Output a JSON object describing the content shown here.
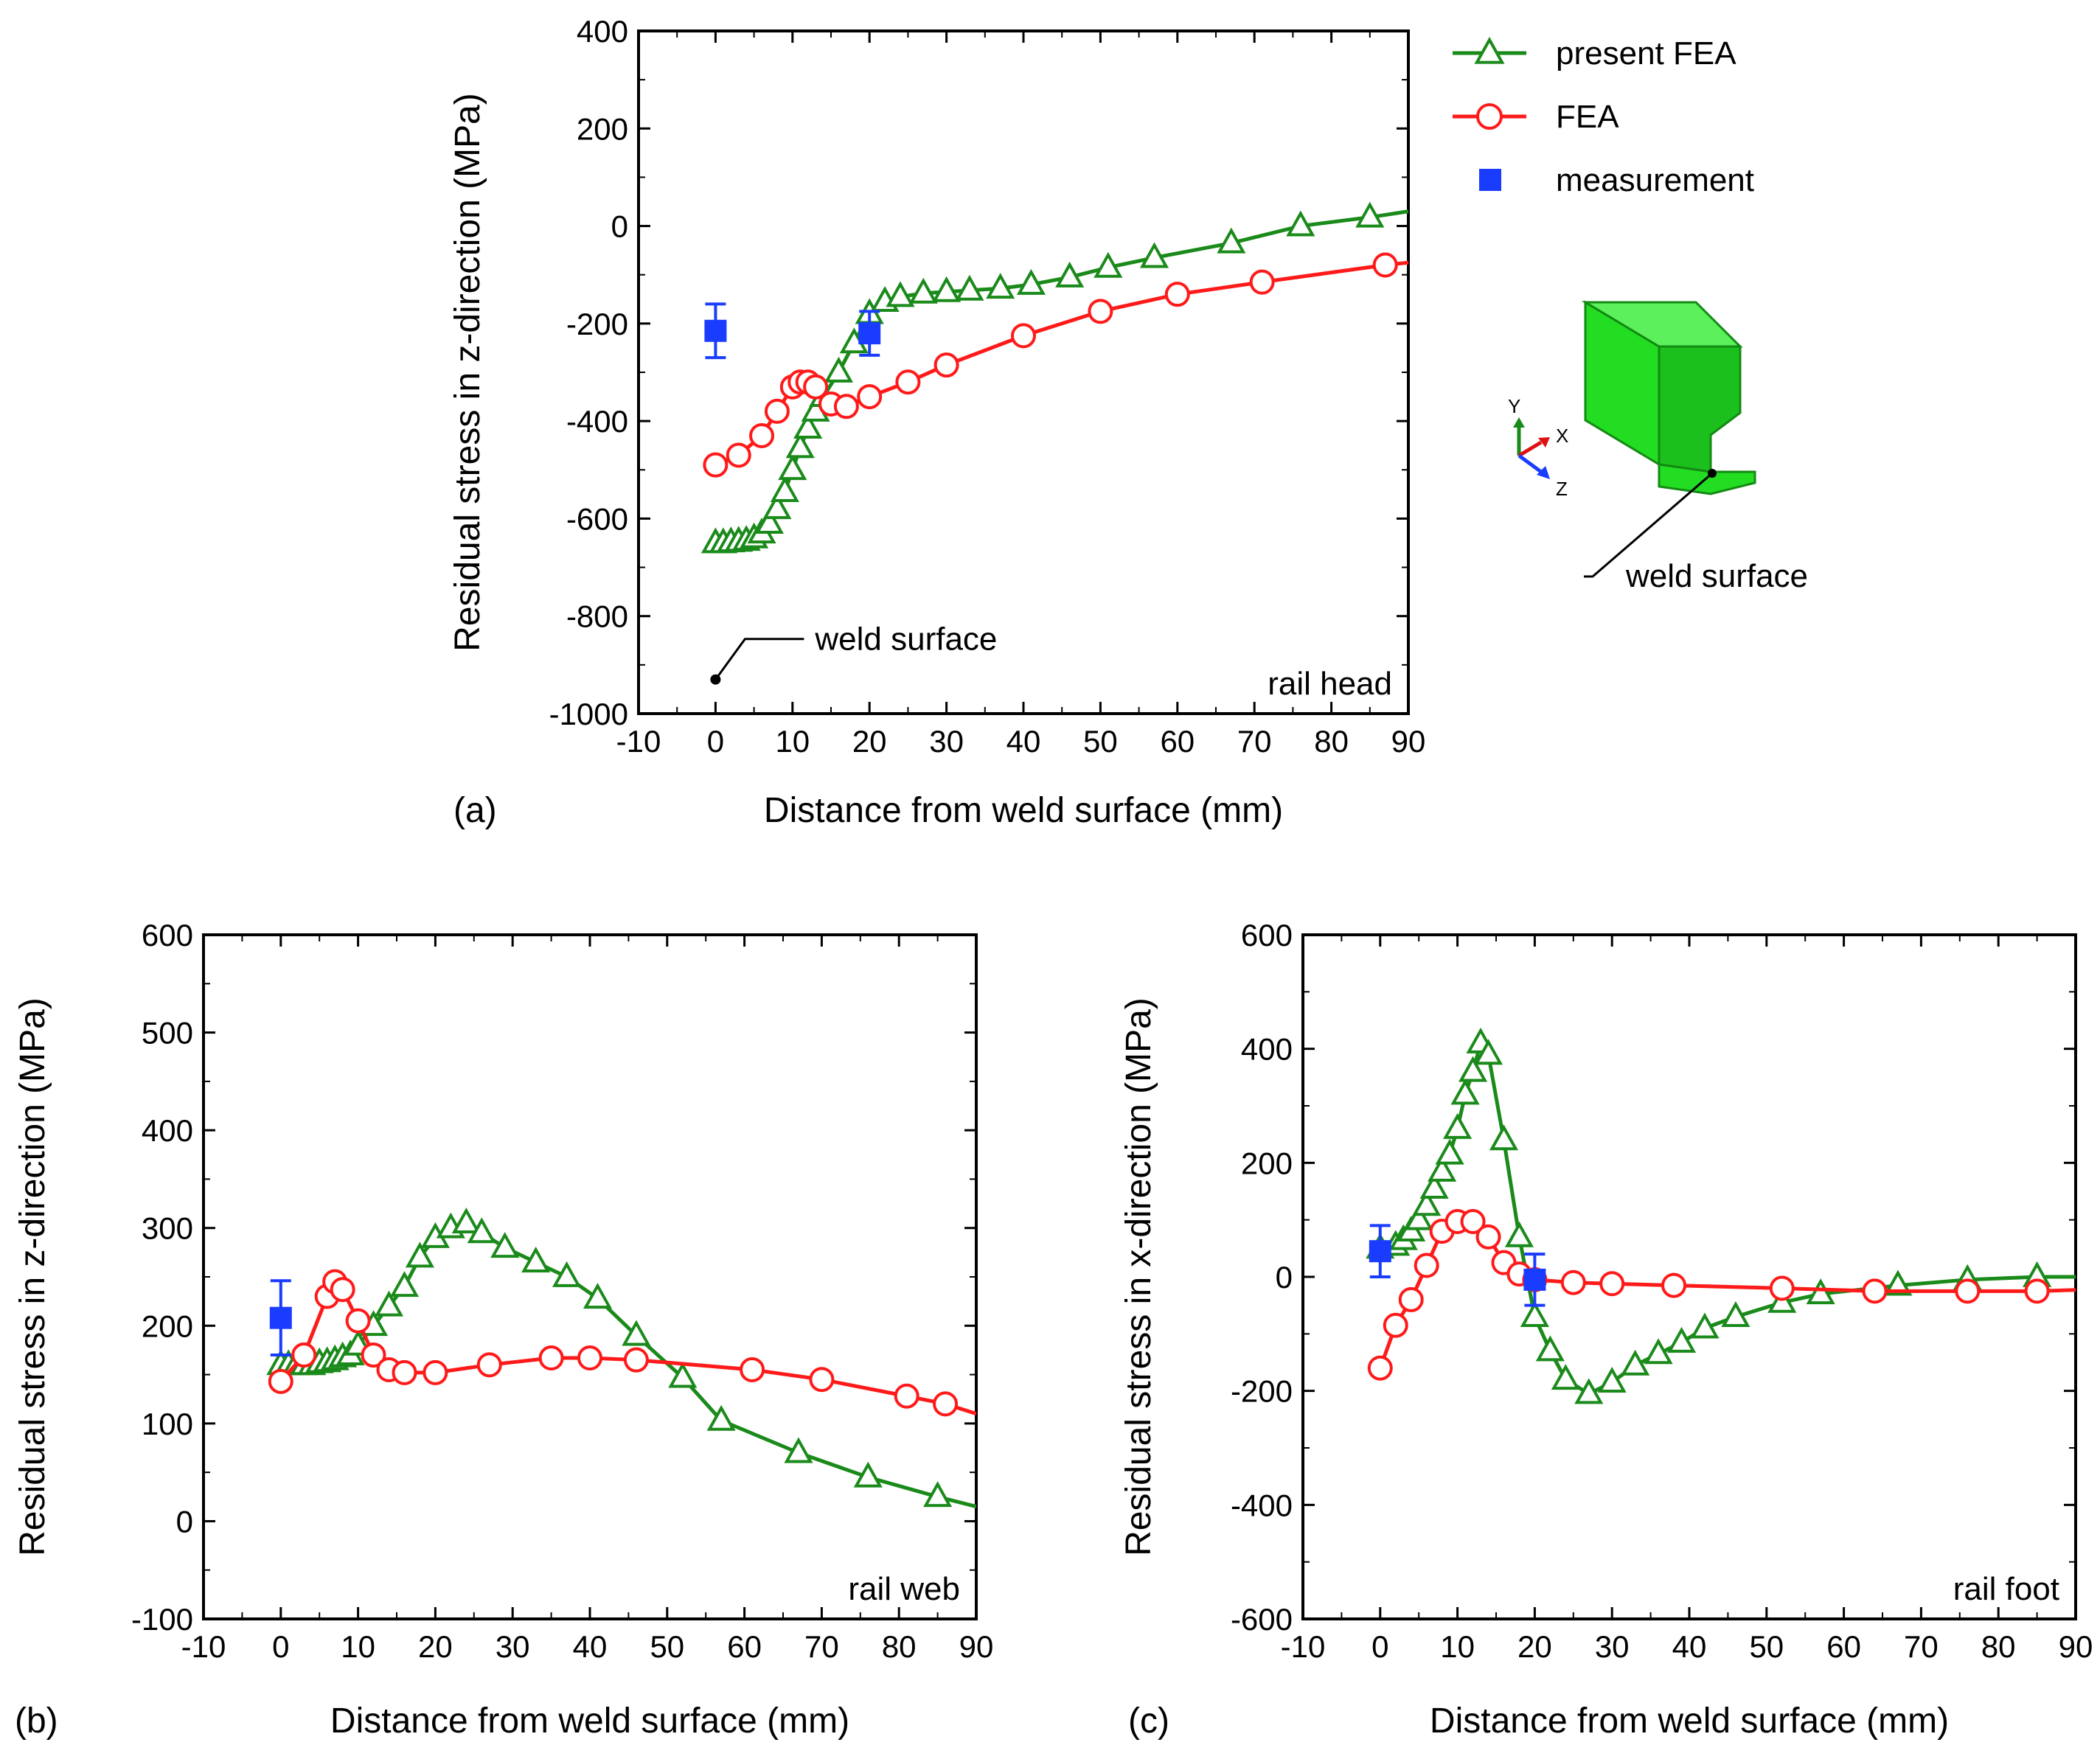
{
  "legend": {
    "entries": [
      {
        "label": "present FEA",
        "color": "#1a8a1a",
        "marker": "triangle-open"
      },
      {
        "label": "FEA",
        "color": "#ff1a1a",
        "marker": "circle-open"
      },
      {
        "label": "measurement",
        "color": "#1a3cff",
        "marker": "square-filled"
      }
    ]
  },
  "inset": {
    "axes": {
      "y": "Y",
      "x": "X",
      "z": "Z"
    },
    "label": "weld surface",
    "solid_color": "#22dd22"
  },
  "chart_data": [
    {
      "type": "line",
      "panel_label": "(a)",
      "xlabel": "Distance from weld surface (mm)",
      "ylabel": "Residual stress in z-direction (MPa)",
      "xlim": [
        -10,
        90
      ],
      "ylim": [
        -1000,
        400
      ],
      "xticks": [
        -10,
        0,
        10,
        20,
        30,
        40,
        50,
        60,
        70,
        80,
        90
      ],
      "yticks": [
        -1000,
        -800,
        -600,
        -400,
        -200,
        0,
        200,
        400
      ],
      "annotation": "rail head",
      "callout": "weld surface",
      "callout_x": 0,
      "callout_y": -930,
      "series": [
        {
          "name": "present FEA",
          "color": "#1a8a1a",
          "marker": "triangle",
          "x": [
            0,
            1,
            2,
            3,
            4,
            5,
            6,
            7,
            8,
            9,
            10,
            11,
            12,
            13,
            14,
            16,
            18,
            20,
            22,
            24,
            27,
            30,
            33,
            37,
            41,
            46,
            51,
            57,
            67,
            76,
            85,
            90
          ],
          "y": [
            -650,
            -650,
            -648,
            -647,
            -645,
            -640,
            -630,
            -610,
            -580,
            -545,
            -500,
            -455,
            -415,
            -380,
            -350,
            -300,
            -240,
            -180,
            -155,
            -145,
            -138,
            -135,
            -132,
            -128,
            -120,
            -105,
            -85,
            -65,
            -35,
            0,
            18,
            30
          ]
        },
        {
          "name": "FEA",
          "color": "#ff1a1a",
          "marker": "circle",
          "x": [
            0,
            3,
            6,
            8,
            10,
            11,
            12,
            13,
            15,
            17,
            20,
            25,
            30,
            40,
            50,
            60,
            71,
            87,
            90
          ],
          "y": [
            -490,
            -470,
            -430,
            -380,
            -330,
            -320,
            -320,
            -330,
            -365,
            -370,
            -350,
            -320,
            -285,
            -225,
            -175,
            -140,
            -115,
            -80,
            -75
          ]
        },
        {
          "name": "measurement",
          "color": "#1a3cff",
          "marker": "square",
          "lines": false,
          "x": [
            0,
            20
          ],
          "y": [
            -215,
            -220
          ],
          "err": [
            55,
            45
          ]
        }
      ]
    },
    {
      "type": "line",
      "panel_label": "(b)",
      "xlabel": "Distance from weld surface (mm)",
      "ylabel": "Residual stress in z-direction (MPa)",
      "xlim": [
        -10,
        90
      ],
      "ylim": [
        -100,
        600
      ],
      "xticks": [
        -10,
        0,
        10,
        20,
        30,
        40,
        50,
        60,
        70,
        80,
        90
      ],
      "yticks": [
        -100,
        0,
        100,
        200,
        300,
        400,
        500,
        600
      ],
      "annotation": "rail web",
      "series": [
        {
          "name": "present FEA",
          "color": "#1a8a1a",
          "marker": "triangle",
          "x": [
            0,
            1,
            2,
            3,
            4,
            5,
            6,
            7,
            8,
            9,
            10,
            12,
            14,
            16,
            18,
            20,
            22,
            24,
            26,
            29,
            33,
            37,
            41,
            46,
            52,
            57,
            67,
            76,
            85,
            90
          ],
          "y": [
            160,
            160,
            160,
            160,
            160,
            162,
            163,
            165,
            168,
            170,
            180,
            200,
            220,
            240,
            270,
            290,
            300,
            305,
            295,
            280,
            265,
            250,
            228,
            190,
            147,
            103,
            70,
            45,
            25,
            15
          ]
        },
        {
          "name": "FEA",
          "color": "#ff1a1a",
          "marker": "circle",
          "x": [
            0,
            3,
            6,
            7,
            8,
            10,
            12,
            14,
            16,
            20,
            27,
            35,
            40,
            46,
            61,
            70,
            81,
            86,
            90
          ],
          "y": [
            143,
            170,
            230,
            245,
            237,
            205,
            170,
            155,
            152,
            152,
            160,
            167,
            167,
            165,
            155,
            145,
            128,
            120,
            110
          ]
        },
        {
          "name": "measurement",
          "color": "#1a3cff",
          "marker": "square",
          "lines": false,
          "x": [
            0
          ],
          "y": [
            208
          ],
          "err": [
            38
          ]
        }
      ]
    },
    {
      "type": "line",
      "panel_label": "(c)",
      "xlabel": "Distance from weld surface (mm)",
      "ylabel": "Residual stress in x-direction (MPa)",
      "xlim": [
        -10,
        90
      ],
      "ylim": [
        -600,
        600
      ],
      "xticks": [
        -10,
        0,
        10,
        20,
        30,
        40,
        50,
        60,
        70,
        80,
        90
      ],
      "yticks": [
        -600,
        -400,
        -200,
        0,
        200,
        400,
        600
      ],
      "annotation": "rail foot",
      "series": [
        {
          "name": "present FEA",
          "color": "#1a8a1a",
          "marker": "triangle",
          "x": [
            0,
            2,
            3,
            4,
            5,
            6,
            7,
            8,
            9,
            10,
            11,
            12,
            13,
            14,
            16,
            18,
            20,
            22,
            24,
            27,
            30,
            33,
            36,
            39,
            42,
            46,
            52,
            57,
            67,
            76,
            85,
            90
          ],
          "y": [
            50,
            55,
            65,
            80,
            100,
            125,
            155,
            185,
            215,
            260,
            320,
            360,
            410,
            390,
            240,
            70,
            -70,
            -130,
            -180,
            -205,
            -185,
            -155,
            -135,
            -115,
            -90,
            -70,
            -45,
            -30,
            -15,
            -5,
            0,
            0
          ]
        },
        {
          "name": "FEA",
          "color": "#ff1a1a",
          "marker": "circle",
          "x": [
            0,
            2,
            4,
            6,
            8,
            10,
            12,
            14,
            16,
            18,
            20,
            25,
            30,
            38,
            52,
            64,
            76,
            85,
            90
          ],
          "y": [
            -160,
            -85,
            -40,
            20,
            80,
            97,
            97,
            70,
            25,
            5,
            -5,
            -10,
            -12,
            -15,
            -20,
            -25,
            -25,
            -25,
            -23
          ]
        },
        {
          "name": "measurement",
          "color": "#1a3cff",
          "marker": "square",
          "lines": false,
          "x": [
            0,
            20
          ],
          "y": [
            45,
            -5
          ],
          "err": [
            45,
            45
          ]
        }
      ]
    }
  ]
}
